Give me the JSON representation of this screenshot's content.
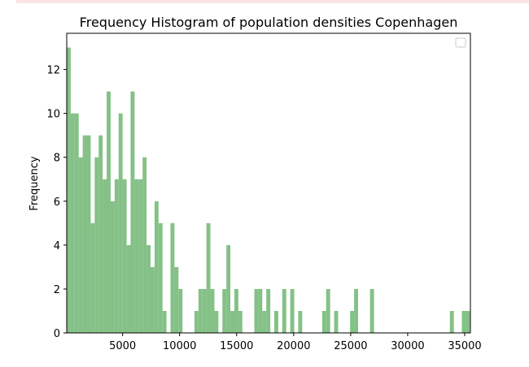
{
  "chart_data": {
    "type": "bar",
    "title": "Frequency Histogram of population densities Copenhagen",
    "xlabel": "",
    "ylabel": "Frequency",
    "xlim": [
      100,
      35500
    ],
    "ylim": [
      0,
      13.65
    ],
    "bin_width": 350,
    "bar_color": "#84c186",
    "grid": false,
    "legend": "top-right",
    "x_ticks": [
      5000,
      10000,
      15000,
      20000,
      25000,
      30000,
      35000
    ],
    "y_ticks": [
      0,
      2,
      4,
      6,
      8,
      10,
      12
    ],
    "bins": [
      {
        "x": 100,
        "count": 13
      },
      {
        "x": 450,
        "count": 10
      },
      {
        "x": 800,
        "count": 10
      },
      {
        "x": 1150,
        "count": 8
      },
      {
        "x": 1500,
        "count": 9
      },
      {
        "x": 1850,
        "count": 9
      },
      {
        "x": 2200,
        "count": 5
      },
      {
        "x": 2550,
        "count": 8
      },
      {
        "x": 2900,
        "count": 9
      },
      {
        "x": 3250,
        "count": 7
      },
      {
        "x": 3600,
        "count": 11
      },
      {
        "x": 3950,
        "count": 6
      },
      {
        "x": 4300,
        "count": 7
      },
      {
        "x": 4650,
        "count": 10
      },
      {
        "x": 5000,
        "count": 7
      },
      {
        "x": 5350,
        "count": 4
      },
      {
        "x": 5700,
        "count": 11
      },
      {
        "x": 6050,
        "count": 7
      },
      {
        "x": 6400,
        "count": 7
      },
      {
        "x": 6750,
        "count": 8
      },
      {
        "x": 7100,
        "count": 4
      },
      {
        "x": 7450,
        "count": 3
      },
      {
        "x": 7800,
        "count": 6
      },
      {
        "x": 8150,
        "count": 5
      },
      {
        "x": 8500,
        "count": 1
      },
      {
        "x": 9200,
        "count": 5
      },
      {
        "x": 9550,
        "count": 3
      },
      {
        "x": 9900,
        "count": 2
      },
      {
        "x": 11300,
        "count": 1
      },
      {
        "x": 11650,
        "count": 2
      },
      {
        "x": 12000,
        "count": 2
      },
      {
        "x": 12350,
        "count": 5
      },
      {
        "x": 12700,
        "count": 2
      },
      {
        "x": 13050,
        "count": 1
      },
      {
        "x": 13750,
        "count": 2
      },
      {
        "x": 14100,
        "count": 4
      },
      {
        "x": 14450,
        "count": 1
      },
      {
        "x": 14800,
        "count": 2
      },
      {
        "x": 15150,
        "count": 1
      },
      {
        "x": 16550,
        "count": 2
      },
      {
        "x": 16900,
        "count": 2
      },
      {
        "x": 17250,
        "count": 1
      },
      {
        "x": 17600,
        "count": 2
      },
      {
        "x": 18300,
        "count": 1
      },
      {
        "x": 19000,
        "count": 2
      },
      {
        "x": 19700,
        "count": 2
      },
      {
        "x": 20400,
        "count": 1
      },
      {
        "x": 22500,
        "count": 1
      },
      {
        "x": 22850,
        "count": 2
      },
      {
        "x": 23550,
        "count": 1
      },
      {
        "x": 24950,
        "count": 1
      },
      {
        "x": 25300,
        "count": 2
      },
      {
        "x": 26700,
        "count": 2
      },
      {
        "x": 33700,
        "count": 1
      },
      {
        "x": 34750,
        "count": 1
      },
      {
        "x": 35100,
        "count": 1
      }
    ]
  }
}
